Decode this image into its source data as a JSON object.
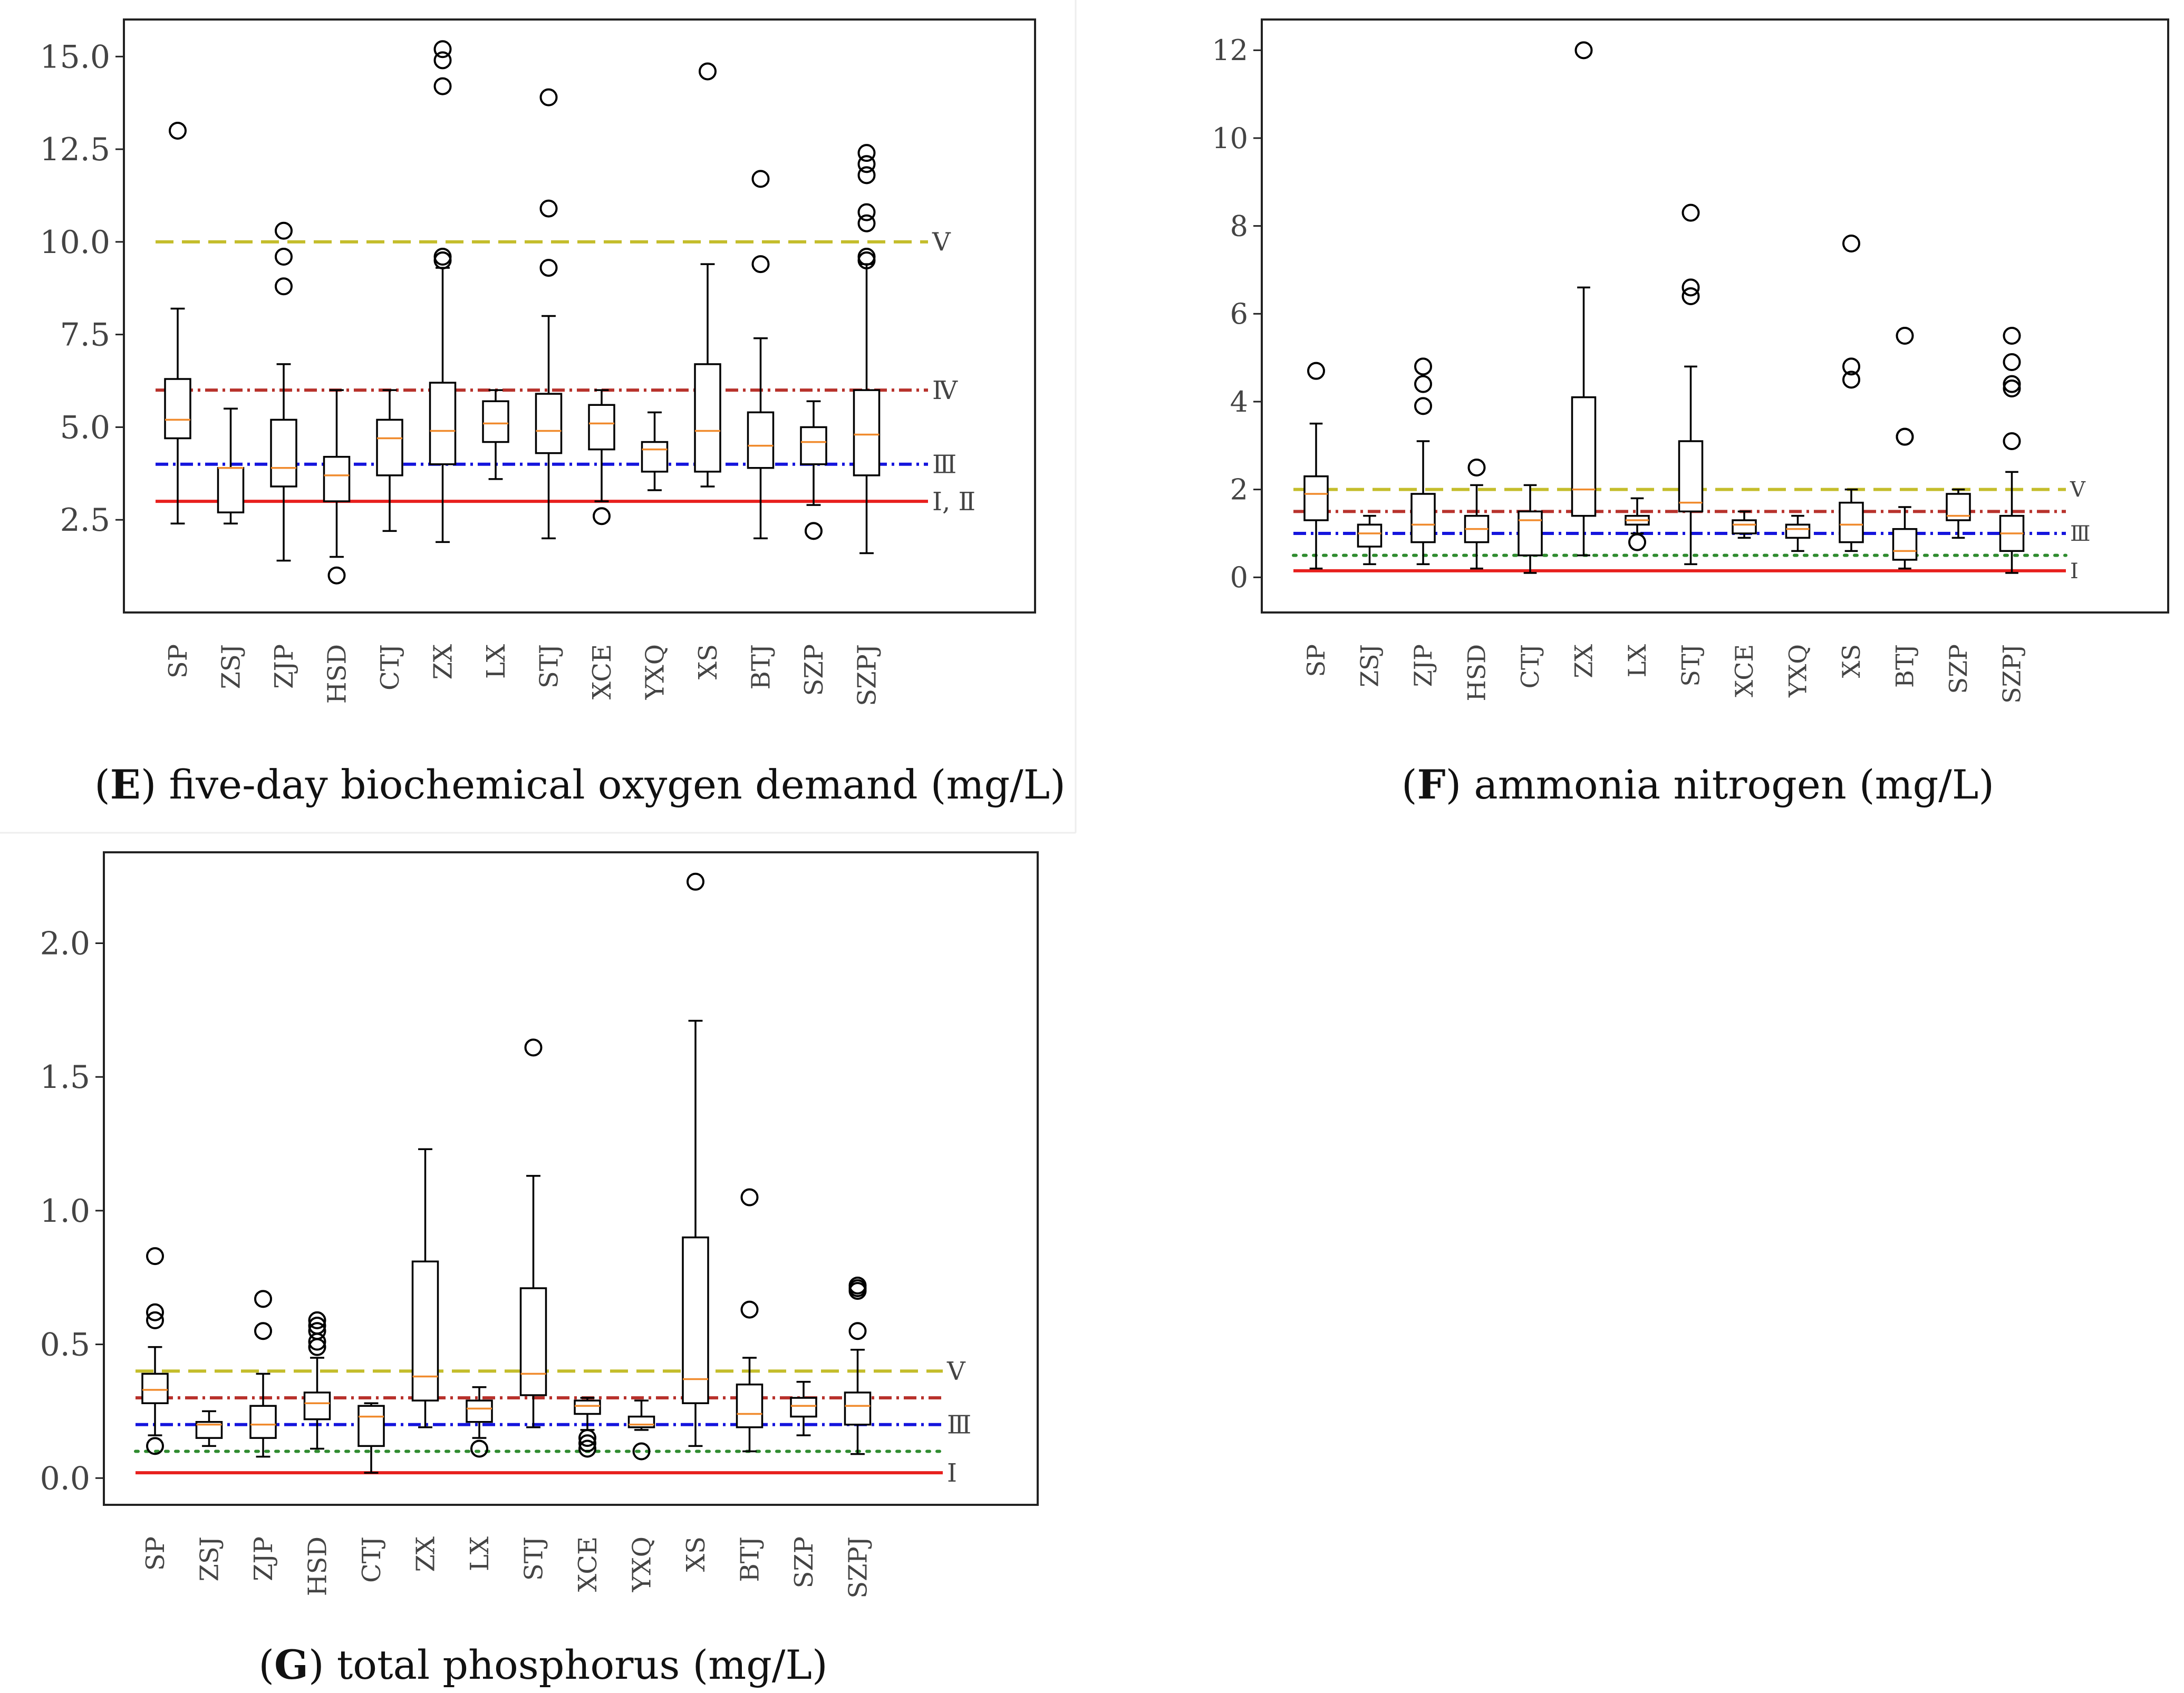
{
  "chart_data": [
    {
      "type": "box",
      "panel": "E",
      "caption": "five-day biochemical oxygen demand (mg/L)",
      "categories": [
        "SP",
        "ZSJ",
        "ZJP",
        "HSD",
        "CTJ",
        "ZX",
        "LX",
        "STJ",
        "XCE",
        "YXQ",
        "XS",
        "BTJ",
        "SZP",
        "SZPJ"
      ],
      "ylim": [
        0.0,
        16.0
      ],
      "yticks": [
        "2.5",
        "5.0",
        "7.5",
        "10.0",
        "12.5",
        "15.0"
      ],
      "boxes": [
        {
          "whislo": 2.4,
          "q1": 4.7,
          "med": 5.2,
          "q3": 6.3,
          "whishi": 8.2,
          "fliers": [
            13.0
          ]
        },
        {
          "whislo": 2.4,
          "q1": 2.7,
          "med": 3.9,
          "q3": 3.9,
          "whishi": 5.5,
          "fliers": []
        },
        {
          "whislo": 1.4,
          "q1": 3.4,
          "med": 3.9,
          "q3": 5.2,
          "whishi": 6.7,
          "fliers": [
            8.8,
            9.6,
            10.3
          ]
        },
        {
          "whislo": 1.5,
          "q1": 3.0,
          "med": 3.7,
          "q3": 4.2,
          "whishi": 6.0,
          "fliers": [
            1.0
          ]
        },
        {
          "whislo": 2.2,
          "q1": 3.7,
          "med": 4.7,
          "q3": 5.2,
          "whishi": 6.0,
          "fliers": []
        },
        {
          "whislo": 1.9,
          "q1": 4.0,
          "med": 4.9,
          "q3": 6.2,
          "whishi": 9.3,
          "fliers": [
            9.5,
            9.6,
            14.2,
            14.9,
            15.2
          ]
        },
        {
          "whislo": 3.6,
          "q1": 4.6,
          "med": 5.1,
          "q3": 5.7,
          "whishi": 6.0,
          "fliers": []
        },
        {
          "whislo": 2.0,
          "q1": 4.3,
          "med": 4.9,
          "q3": 5.9,
          "whishi": 8.0,
          "fliers": [
            9.3,
            10.9,
            13.9
          ]
        },
        {
          "whislo": 3.0,
          "q1": 4.4,
          "med": 5.1,
          "q3": 5.6,
          "whishi": 6.0,
          "fliers": [
            2.6
          ]
        },
        {
          "whislo": 3.3,
          "q1": 3.8,
          "med": 4.4,
          "q3": 4.6,
          "whishi": 5.4,
          "fliers": []
        },
        {
          "whislo": 3.4,
          "q1": 3.8,
          "med": 4.9,
          "q3": 6.7,
          "whishi": 9.4,
          "fliers": [
            14.6
          ]
        },
        {
          "whislo": 2.0,
          "q1": 3.9,
          "med": 4.5,
          "q3": 5.4,
          "whishi": 7.4,
          "fliers": [
            9.4,
            11.7
          ]
        },
        {
          "whislo": 2.9,
          "q1": 4.0,
          "med": 4.6,
          "q3": 5.0,
          "whishi": 5.7,
          "fliers": [
            2.2
          ]
        },
        {
          "whislo": 1.6,
          "q1": 3.7,
          "med": 4.8,
          "q3": 6.0,
          "whishi": 9.4,
          "fliers": [
            9.5,
            9.6,
            10.5,
            10.8,
            11.8,
            12.1,
            12.4
          ]
        }
      ],
      "reference_lines": [
        {
          "value": 3.0,
          "label": "Ⅰ, Ⅱ",
          "style": "solid",
          "color": "#e8201e"
        },
        {
          "value": 4.0,
          "label": "Ⅲ",
          "style": "dashdot-blue",
          "color": "#1515dd"
        },
        {
          "value": 6.0,
          "label": "Ⅳ",
          "style": "dashdot-red",
          "color": "#b8322c"
        },
        {
          "value": 10.0,
          "label": "Ⅴ",
          "style": "dashed",
          "color": "#c4bd2b"
        }
      ]
    },
    {
      "type": "box",
      "panel": "F",
      "caption": "ammonia nitrogen (mg/L)",
      "categories": [
        "SP",
        "ZSJ",
        "ZJP",
        "HSD",
        "CTJ",
        "ZX",
        "LX",
        "STJ",
        "XCE",
        "YXQ",
        "XS",
        "BTJ",
        "SZP",
        "SZPJ"
      ],
      "ylim": [
        -0.8,
        12.7
      ],
      "yticks": [
        "0",
        "2",
        "4",
        "6",
        "8",
        "10",
        "12"
      ],
      "boxes": [
        {
          "whislo": 0.2,
          "q1": 1.3,
          "med": 1.9,
          "q3": 2.3,
          "whishi": 3.5,
          "fliers": [
            4.7
          ]
        },
        {
          "whislo": 0.3,
          "q1": 0.7,
          "med": 1.0,
          "q3": 1.2,
          "whishi": 1.4,
          "fliers": []
        },
        {
          "whislo": 0.3,
          "q1": 0.8,
          "med": 1.2,
          "q3": 1.9,
          "whishi": 3.1,
          "fliers": [
            3.9,
            4.4,
            4.8
          ]
        },
        {
          "whislo": 0.2,
          "q1": 0.8,
          "med": 1.1,
          "q3": 1.4,
          "whishi": 2.1,
          "fliers": [
            2.5
          ]
        },
        {
          "whislo": 0.1,
          "q1": 0.5,
          "med": 1.3,
          "q3": 1.5,
          "whishi": 2.1,
          "fliers": []
        },
        {
          "whislo": 0.5,
          "q1": 1.4,
          "med": 2.0,
          "q3": 4.1,
          "whishi": 6.6,
          "fliers": [
            12.0
          ]
        },
        {
          "whislo": 1.0,
          "q1": 1.2,
          "med": 1.3,
          "q3": 1.4,
          "whishi": 1.8,
          "fliers": [
            0.8
          ]
        },
        {
          "whislo": 0.3,
          "q1": 1.5,
          "med": 1.7,
          "q3": 3.1,
          "whishi": 4.8,
          "fliers": [
            6.4,
            6.6,
            8.3
          ]
        },
        {
          "whislo": 0.9,
          "q1": 1.0,
          "med": 1.2,
          "q3": 1.3,
          "whishi": 1.5,
          "fliers": []
        },
        {
          "whislo": 0.6,
          "q1": 0.9,
          "med": 1.1,
          "q3": 1.2,
          "whishi": 1.4,
          "fliers": []
        },
        {
          "whislo": 0.6,
          "q1": 0.8,
          "med": 1.2,
          "q3": 1.7,
          "whishi": 2.0,
          "fliers": [
            4.5,
            4.8,
            7.6
          ]
        },
        {
          "whislo": 0.2,
          "q1": 0.4,
          "med": 0.6,
          "q3": 1.1,
          "whishi": 1.6,
          "fliers": [
            3.2,
            3.2,
            5.5
          ]
        },
        {
          "whislo": 0.9,
          "q1": 1.3,
          "med": 1.4,
          "q3": 1.9,
          "whishi": 2.0,
          "fliers": []
        },
        {
          "whislo": 0.1,
          "q1": 0.6,
          "med": 1.0,
          "q3": 1.4,
          "whishi": 2.4,
          "fliers": [
            3.1,
            4.3,
            4.4,
            4.9,
            5.5
          ]
        }
      ],
      "reference_lines": [
        {
          "value": 0.15,
          "label": "Ⅰ",
          "style": "solid",
          "color": "#e8201e"
        },
        {
          "value": 0.5,
          "label": "",
          "style": "dotted",
          "color": "#2e8b2e"
        },
        {
          "value": 1.0,
          "label": "Ⅲ",
          "style": "dashdot-blue",
          "color": "#1515dd"
        },
        {
          "value": 1.5,
          "label": "",
          "style": "dashdot-red",
          "color": "#b8322c"
        },
        {
          "value": 2.0,
          "label": "Ⅴ",
          "style": "dashed",
          "color": "#c4bd2b"
        }
      ]
    },
    {
      "type": "box",
      "panel": "G",
      "caption": "total phosphorus (mg/L)",
      "categories": [
        "SP",
        "ZSJ",
        "ZJP",
        "HSD",
        "CTJ",
        "ZX",
        "LX",
        "STJ",
        "XCE",
        "YXQ",
        "XS",
        "BTJ",
        "SZP",
        "SZPJ"
      ],
      "ylim": [
        -0.1,
        2.34
      ],
      "yticks": [
        "0.0",
        "0.5",
        "1.0",
        "1.5",
        "2.0"
      ],
      "boxes": [
        {
          "whislo": 0.16,
          "q1": 0.28,
          "med": 0.33,
          "q3": 0.39,
          "whishi": 0.49,
          "fliers": [
            0.12,
            0.59,
            0.62,
            0.83
          ]
        },
        {
          "whislo": 0.12,
          "q1": 0.15,
          "med": 0.2,
          "q3": 0.21,
          "whishi": 0.25,
          "fliers": []
        },
        {
          "whislo": 0.08,
          "q1": 0.15,
          "med": 0.2,
          "q3": 0.27,
          "whishi": 0.39,
          "fliers": [
            0.55,
            0.67
          ]
        },
        {
          "whislo": 0.11,
          "q1": 0.22,
          "med": 0.28,
          "q3": 0.32,
          "whishi": 0.45,
          "fliers": [
            0.49,
            0.51,
            0.55,
            0.57,
            0.59
          ]
        },
        {
          "whislo": 0.02,
          "q1": 0.12,
          "med": 0.23,
          "q3": 0.27,
          "whishi": 0.28,
          "fliers": []
        },
        {
          "whislo": 0.19,
          "q1": 0.29,
          "med": 0.38,
          "q3": 0.81,
          "whishi": 1.23,
          "fliers": []
        },
        {
          "whislo": 0.15,
          "q1": 0.21,
          "med": 0.26,
          "q3": 0.29,
          "whishi": 0.34,
          "fliers": [
            0.11
          ]
        },
        {
          "whislo": 0.19,
          "q1": 0.31,
          "med": 0.39,
          "q3": 0.71,
          "whishi": 1.13,
          "fliers": [
            1.61
          ]
        },
        {
          "whislo": 0.18,
          "q1": 0.24,
          "med": 0.27,
          "q3": 0.29,
          "whishi": 0.3,
          "fliers": [
            0.11,
            0.13,
            0.15
          ]
        },
        {
          "whislo": 0.18,
          "q1": 0.19,
          "med": 0.2,
          "q3": 0.23,
          "whishi": 0.29,
          "fliers": [
            0.1
          ]
        },
        {
          "whislo": 0.12,
          "q1": 0.28,
          "med": 0.37,
          "q3": 0.9,
          "whishi": 1.71,
          "fliers": [
            2.23
          ]
        },
        {
          "whislo": 0.1,
          "q1": 0.19,
          "med": 0.24,
          "q3": 0.35,
          "whishi": 0.45,
          "fliers": [
            0.63,
            1.05
          ]
        },
        {
          "whislo": 0.16,
          "q1": 0.23,
          "med": 0.27,
          "q3": 0.3,
          "whishi": 0.36,
          "fliers": []
        },
        {
          "whislo": 0.09,
          "q1": 0.2,
          "med": 0.27,
          "q3": 0.32,
          "whishi": 0.48,
          "fliers": [
            0.55,
            0.7,
            0.71,
            0.72
          ]
        }
      ],
      "reference_lines": [
        {
          "value": 0.02,
          "label": "Ⅰ",
          "style": "solid",
          "color": "#e8201e"
        },
        {
          "value": 0.1,
          "label": "",
          "style": "dotted",
          "color": "#2e8b2e"
        },
        {
          "value": 0.2,
          "label": "Ⅲ",
          "style": "dashdot-blue",
          "color": "#1515dd"
        },
        {
          "value": 0.3,
          "label": "",
          "style": "dashdot-red",
          "color": "#b8322c"
        },
        {
          "value": 0.4,
          "label": "Ⅴ",
          "style": "dashed",
          "color": "#c4bd2b"
        }
      ]
    }
  ],
  "colors": {
    "median": "#f08a2c",
    "box": "#000000",
    "frame": "#222222"
  }
}
